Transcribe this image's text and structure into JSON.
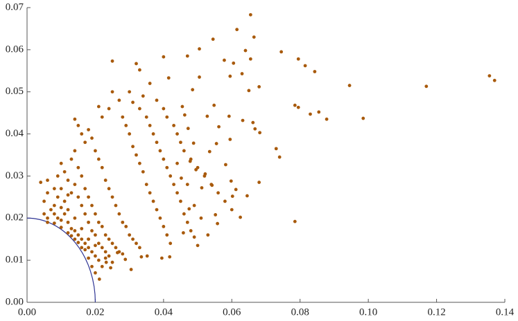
{
  "chart_data": {
    "type": "scatter",
    "color": "#a85a0c",
    "circle_radius": 0.02,
    "circle_color": "#2e3494",
    "xlim": [
      0,
      0.14
    ],
    "ylim": [
      0,
      0.07
    ],
    "xticks": [
      {
        "value": 0,
        "label": "0.00"
      },
      {
        "value": 0.02,
        "label": "0.02"
      },
      {
        "value": 0.04,
        "label": "0.04"
      },
      {
        "value": 0.06,
        "label": "0.06"
      },
      {
        "value": 0.08,
        "label": "0.08"
      },
      {
        "value": 0.1,
        "label": "0.10"
      },
      {
        "value": 0.12,
        "label": "0.12"
      },
      {
        "value": 0.14,
        "label": "0.14"
      }
    ],
    "yticks": [
      {
        "value": 0,
        "label": "0.00"
      },
      {
        "value": 0.01,
        "label": "0.01"
      },
      {
        "value": 0.02,
        "label": "0.02"
      },
      {
        "value": 0.03,
        "label": "0.03"
      },
      {
        "value": 0.04,
        "label": "0.04"
      },
      {
        "value": 0.05,
        "label": "0.05"
      },
      {
        "value": 0.06,
        "label": "0.06"
      },
      {
        "value": 0.07,
        "label": "0.07"
      }
    ],
    "x": [
      0.0655,
      0.0615,
      0.0665,
      0.0545,
      0.0745,
      0.0795,
      0.0815,
      0.0843,
      0.0945,
      0.117,
      0.1355,
      0.137,
      0.0985,
      0.0855,
      0.083,
      0.0878,
      0.0785,
      0.0795,
      0.0785,
      0.073,
      0.074,
      0.068,
      0.065,
      0.068,
      0.0655,
      0.064,
      0.063,
      0.0605,
      0.0595,
      0.0578,
      0.0505,
      0.047,
      0.04,
      0.025,
      0.033,
      0.032,
      0.0415,
      0.0485,
      0.0505,
      0.0552,
      0.0558,
      0.0625,
      0.0602,
      0.0645,
      0.0612,
      0.0662,
      0.0668,
      0.0632,
      0.0592,
      0.0682,
      0.0595,
      0.0582,
      0.0598,
      0.0542,
      0.0512,
      0.0522,
      0.0535,
      0.0555,
      0.0562,
      0.0528,
      0.0548,
      0.0455,
      0.0462,
      0.0472,
      0.0488,
      0.0478,
      0.0495,
      0.0452,
      0.0475,
      0.0458,
      0.0418,
      0.0395,
      0.0352,
      0.0335,
      0.0305,
      0.0288,
      0.0245,
      0.0212,
      0.0232,
      0.0265,
      0.004,
      0.005,
      0.006,
      0.007,
      0.008,
      0.009,
      0.01,
      0.011,
      0.012,
      0.013,
      0.014,
      0.015,
      0.016,
      0.017,
      0.018,
      0.019,
      0.02,
      0.021,
      0.022,
      0.023,
      0.005,
      0.006,
      0.008,
      0.009,
      0.01,
      0.011,
      0.012,
      0.013,
      0.014,
      0.015,
      0.016,
      0.017,
      0.018,
      0.019,
      0.02,
      0.021,
      0.022,
      0.023,
      0.024,
      0.025,
      0.009,
      0.01,
      0.011,
      0.012,
      0.013,
      0.014,
      0.015,
      0.016,
      0.017,
      0.018,
      0.019,
      0.02,
      0.021,
      0.022,
      0.023,
      0.024,
      0.025,
      0.026,
      0.027,
      0.028,
      0.014,
      0.015,
      0.016,
      0.017,
      0.018,
      0.019,
      0.02,
      0.021,
      0.022,
      0.023,
      0.024,
      0.025,
      0.026,
      0.027,
      0.028,
      0.029,
      0.03,
      0.031,
      0.032,
      0.033,
      0.021,
      0.022,
      0.024,
      0.025,
      0.027,
      0.028,
      0.029,
      0.03,
      0.031,
      0.032,
      0.033,
      0.034,
      0.035,
      0.036,
      0.037,
      0.038,
      0.039,
      0.04,
      0.041,
      0.042,
      0.03,
      0.031,
      0.033,
      0.034,
      0.035,
      0.036,
      0.037,
      0.038,
      0.039,
      0.04,
      0.041,
      0.042,
      0.043,
      0.044,
      0.045,
      0.046,
      0.047,
      0.048,
      0.049,
      0.05,
      0.036,
      0.038,
      0.04,
      0.041,
      0.043,
      0.044,
      0.045,
      0.046,
      0.048,
      0.05,
      0.052,
      0.054,
      0.056,
      0.058,
      0.06,
      0.053,
      0.051,
      0.049,
      0.047,
      0.044,
      0.01,
      0.012,
      0.014,
      0.016,
      0.018,
      0.02,
      0.008,
      0.006,
      0.017,
      0.015,
      0.019,
      0.013,
      0.018,
      0.02,
      0.018,
      0.016,
      0.014,
      0.012,
      0.01,
      0.008,
      0.006
    ],
    "values": [
      0.0683,
      0.0648,
      0.063,
      0.0625,
      0.0595,
      0.0578,
      0.0562,
      0.0548,
      0.0515,
      0.0513,
      0.0538,
      0.0527,
      0.0437,
      0.0452,
      0.0447,
      0.0435,
      0.0468,
      0.0463,
      0.0192,
      0.0365,
      0.0345,
      0.0285,
      0.0503,
      0.0512,
      0.0578,
      0.0598,
      0.0543,
      0.0568,
      0.0537,
      0.0575,
      0.0602,
      0.0585,
      0.0583,
      0.0573,
      0.0552,
      0.0567,
      0.0533,
      0.0505,
      0.0535,
      0.0208,
      0.0187,
      0.0202,
      0.0252,
      0.0253,
      0.0268,
      0.0427,
      0.0412,
      0.0432,
      0.0442,
      0.0403,
      0.0387,
      0.0327,
      0.0288,
      0.0278,
      0.0272,
      0.0305,
      0.0358,
      0.0377,
      0.0417,
      0.0442,
      0.0468,
      0.0465,
      0.0445,
      0.0413,
      0.0378,
      0.0335,
      0.0315,
      0.0295,
      0.0222,
      0.0165,
      0.0108,
      0.0105,
      0.011,
      0.0108,
      0.0078,
      0.0102,
      0.0082,
      0.0055,
      0.0095,
      0.0118,
      0.0285,
      0.024,
      0.026,
      0.022,
      0.021,
      0.02,
      0.0195,
      0.021,
      0.019,
      0.0175,
      0.017,
      0.016,
      0.015,
      0.014,
      0.013,
      0.012,
      0.011,
      0.01,
      0.0085,
      0.0105,
      0.021,
      0.019,
      0.023,
      0.025,
      0.027,
      0.024,
      0.022,
      0.026,
      0.028,
      0.025,
      0.023,
      0.021,
      0.019,
      0.017,
      0.016,
      0.014,
      0.013,
      0.012,
      0.011,
      0.0095,
      0.03,
      0.033,
      0.031,
      0.029,
      0.034,
      0.036,
      0.032,
      0.03,
      0.027,
      0.025,
      0.023,
      0.021,
      0.019,
      0.018,
      0.016,
      0.015,
      0.014,
      0.013,
      0.012,
      0.0115,
      0.0435,
      0.042,
      0.04,
      0.038,
      0.041,
      0.039,
      0.036,
      0.034,
      0.032,
      0.029,
      0.027,
      0.025,
      0.023,
      0.021,
      0.019,
      0.018,
      0.016,
      0.015,
      0.014,
      0.013,
      0.0465,
      0.044,
      0.046,
      0.05,
      0.048,
      0.044,
      0.042,
      0.04,
      0.037,
      0.035,
      0.033,
      0.031,
      0.028,
      0.026,
      0.024,
      0.022,
      0.02,
      0.018,
      0.016,
      0.014,
      0.05,
      0.0475,
      0.046,
      0.049,
      0.044,
      0.042,
      0.04,
      0.038,
      0.036,
      0.034,
      0.032,
      0.03,
      0.028,
      0.026,
      0.024,
      0.021,
      0.019,
      0.017,
      0.0155,
      0.0135,
      0.052,
      0.048,
      0.046,
      0.044,
      0.042,
      0.04,
      0.038,
      0.036,
      0.034,
      0.032,
      0.03,
      0.028,
      0.026,
      0.024,
      0.022,
      0.016,
      0.02,
      0.023,
      0.028,
      0.033,
      0.0178,
      0.0165,
      0.015,
      0.013,
      0.0105,
      0.007,
      0.0188,
      0.02,
      0.0125,
      0.0142,
      0.0085,
      0.0158,
      0.015,
      0.0135,
      0.015,
      0.0175,
      0.02,
      0.0255,
      0.0225,
      0.027,
      0.029
    ]
  }
}
